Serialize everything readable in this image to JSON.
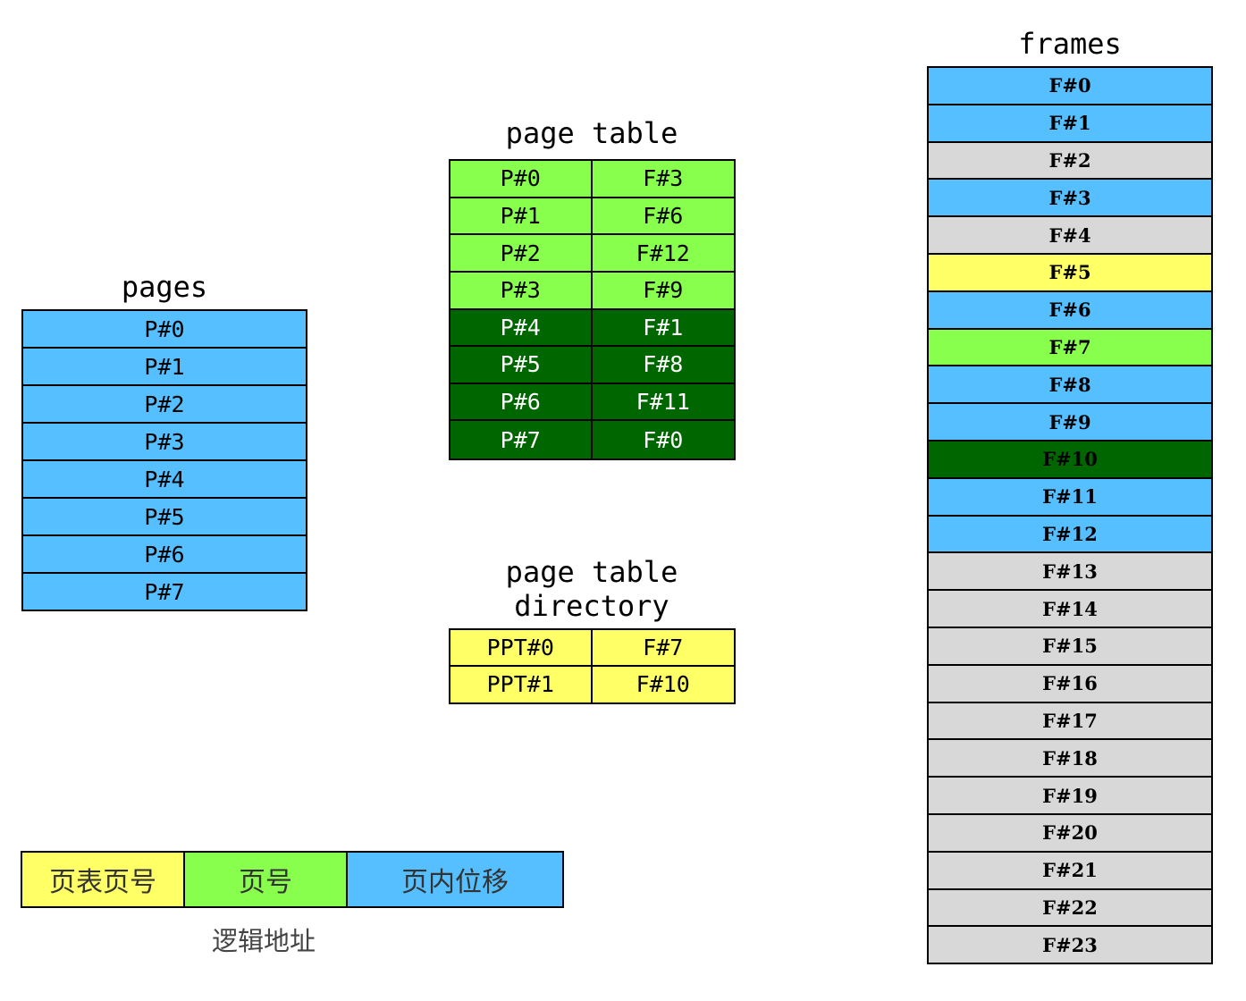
{
  "colors": {
    "blue": "#55bfff",
    "gray": "#d8d8d8",
    "yellow": "#ffff66",
    "light_green": "#88ff4d",
    "dark_green": "#006600"
  },
  "pages": {
    "title": "pages",
    "items": [
      "P#0",
      "P#1",
      "P#2",
      "P#3",
      "P#4",
      "P#5",
      "P#6",
      "P#7"
    ]
  },
  "page_table": {
    "title": "page table",
    "rows": [
      {
        "page": "P#0",
        "frame": "F#3",
        "color": "light_green"
      },
      {
        "page": "P#1",
        "frame": "F#6",
        "color": "light_green"
      },
      {
        "page": "P#2",
        "frame": "F#12",
        "color": "light_green"
      },
      {
        "page": "P#3",
        "frame": "F#9",
        "color": "light_green"
      },
      {
        "page": "P#4",
        "frame": "F#1",
        "color": "dark_green"
      },
      {
        "page": "P#5",
        "frame": "F#8",
        "color": "dark_green"
      },
      {
        "page": "P#6",
        "frame": "F#11",
        "color": "dark_green"
      },
      {
        "page": "P#7",
        "frame": "F#0",
        "color": "dark_green"
      }
    ]
  },
  "page_table_directory": {
    "title": "page table\ndirectory",
    "rows": [
      {
        "entry": "PPT#0",
        "frame": "F#7"
      },
      {
        "entry": "PPT#1",
        "frame": "F#10"
      }
    ]
  },
  "frames": {
    "title": "frames",
    "items": [
      {
        "label": "F#0",
        "color": "blue"
      },
      {
        "label": "F#1",
        "color": "blue"
      },
      {
        "label": "F#2",
        "color": "gray"
      },
      {
        "label": "F#3",
        "color": "blue"
      },
      {
        "label": "F#4",
        "color": "gray"
      },
      {
        "label": "F#5",
        "color": "yellow"
      },
      {
        "label": "F#6",
        "color": "blue"
      },
      {
        "label": "F#7",
        "color": "light_green"
      },
      {
        "label": "F#8",
        "color": "blue"
      },
      {
        "label": "F#9",
        "color": "blue"
      },
      {
        "label": "F#10",
        "color": "dark_green"
      },
      {
        "label": "F#11",
        "color": "blue"
      },
      {
        "label": "F#12",
        "color": "blue"
      },
      {
        "label": "F#13",
        "color": "gray"
      },
      {
        "label": "F#14",
        "color": "gray"
      },
      {
        "label": "F#15",
        "color": "gray"
      },
      {
        "label": "F#16",
        "color": "gray"
      },
      {
        "label": "F#17",
        "color": "gray"
      },
      {
        "label": "F#18",
        "color": "gray"
      },
      {
        "label": "F#19",
        "color": "gray"
      },
      {
        "label": "F#20",
        "color": "gray"
      },
      {
        "label": "F#21",
        "color": "gray"
      },
      {
        "label": "F#22",
        "color": "gray"
      },
      {
        "label": "F#23",
        "color": "gray"
      }
    ]
  },
  "logical_address": {
    "segments": [
      {
        "label": "页表页号",
        "color": "yellow"
      },
      {
        "label": "页号",
        "color": "light_green"
      },
      {
        "label": "页内位移",
        "color": "blue"
      }
    ],
    "caption": "逻辑地址"
  }
}
